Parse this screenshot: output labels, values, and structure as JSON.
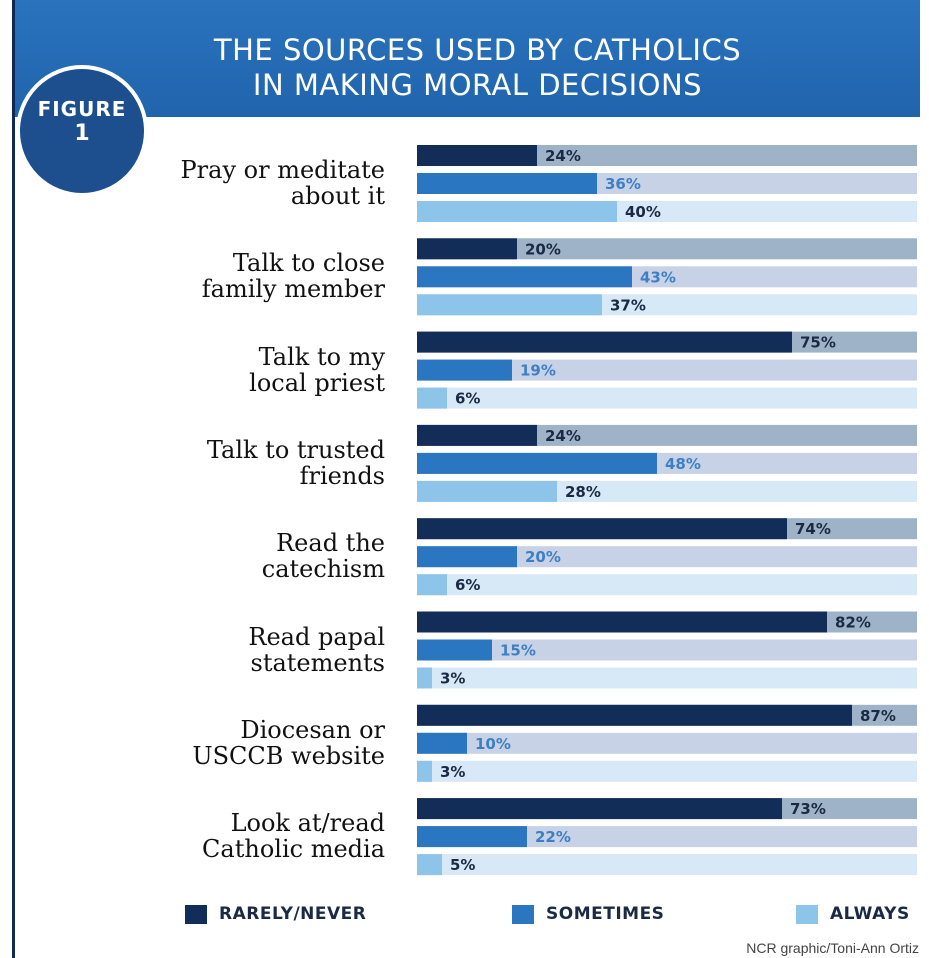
{
  "figure": {
    "word": "FIGURE",
    "number": "1"
  },
  "credit": "NCR graphic/Toni-Ann Ortiz",
  "colors": {
    "header": "#2468b0",
    "rarely": "#122d57",
    "sometimes": "#2a76c0",
    "always": "#8cc4ea",
    "track_rarely": "#9fb3c8",
    "track_sometimes": "#c8d2e6",
    "track_always": "#d7e8f6",
    "label_rarely": "#1a2a44",
    "label_sometimes": "#3d7fc4",
    "label_always": "#1a2a44"
  },
  "chart_data": {
    "type": "bar",
    "title": [
      "THE SOURCES USED BY CATHOLICS",
      "IN MAKING MORAL DECISIONS"
    ],
    "orientation": "horizontal",
    "categories": [
      "Pray or meditate\nabout it",
      "Talk to close\nfamily member",
      "Talk to my\nlocal priest",
      "Talk to trusted\nfriends",
      "Read the\ncatechism",
      "Read papal\nstatements",
      "Diocesan or\nUSCCB website",
      "Look at/read\nCatholic media"
    ],
    "series": [
      {
        "name": "RARELY/NEVER",
        "values": [
          24,
          20,
          75,
          24,
          74,
          82,
          87,
          73
        ]
      },
      {
        "name": "SOMETIMES",
        "values": [
          36,
          43,
          19,
          48,
          20,
          15,
          10,
          22
        ]
      },
      {
        "name": "ALWAYS",
        "values": [
          40,
          37,
          6,
          28,
          6,
          3,
          3,
          5
        ]
      }
    ],
    "value_suffix": "%",
    "xlim": [
      0,
      100
    ],
    "grid": false,
    "legend": "bottom"
  }
}
